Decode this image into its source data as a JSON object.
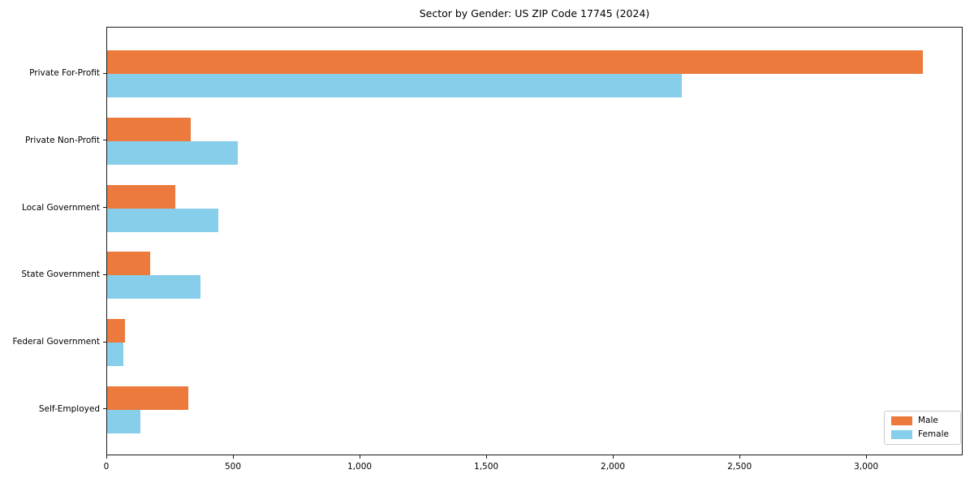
{
  "chart_data": {
    "type": "bar",
    "orientation": "horizontal",
    "title": "Sector by Gender: US ZIP Code 17745 (2024)",
    "categories": [
      "Private For-Profit",
      "Private Non-Profit",
      "Local Government",
      "State Government",
      "Federal Government",
      "Self-Employed"
    ],
    "series": [
      {
        "name": "Male",
        "color": "#EC7A3C",
        "values": [
          3220,
          330,
          270,
          170,
          72,
          320
        ]
      },
      {
        "name": "Female",
        "color": "#87CEEB",
        "values": [
          2270,
          515,
          440,
          370,
          65,
          130
        ]
      }
    ],
    "xlabel": "",
    "ylabel": "",
    "xlim": [
      0,
      3381
    ],
    "xticks": [
      0,
      500,
      1000,
      1500,
      2000,
      2500,
      3000
    ],
    "xtick_labels": [
      "0",
      "500",
      "1,000",
      "1,500",
      "2,000",
      "2,500",
      "3,000"
    ],
    "grid": false,
    "legend_position": "lower right"
  }
}
